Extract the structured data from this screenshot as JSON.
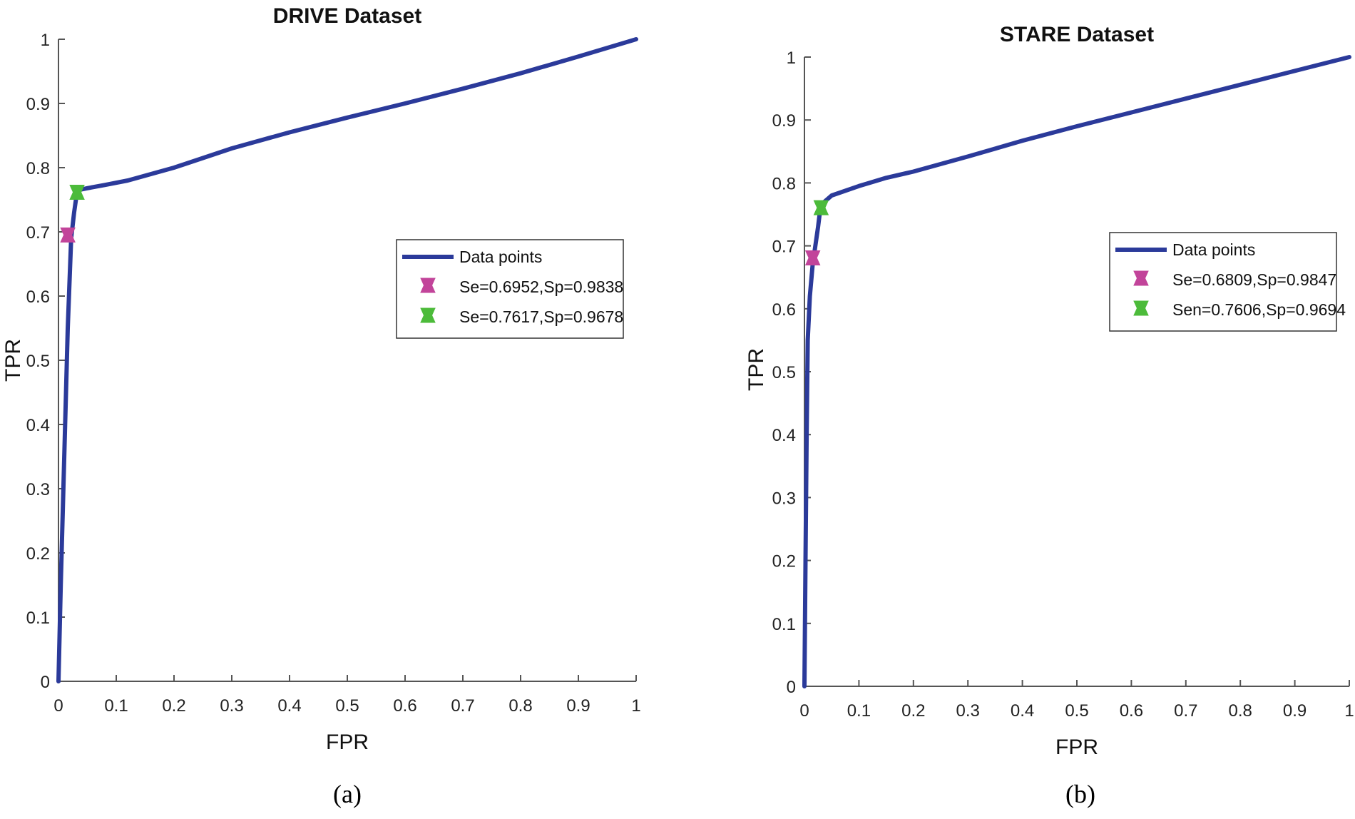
{
  "chart_data": [
    {
      "type": "line",
      "title": "DRIVE Dataset",
      "xlabel": "FPR",
      "ylabel": "TPR",
      "caption": "(a)",
      "xlim": [
        0,
        1
      ],
      "ylim": [
        0,
        1
      ],
      "xticks": [
        "0",
        "0.1",
        "0.2",
        "0.3",
        "0.4",
        "0.5",
        "0.6",
        "0.7",
        "0.8",
        "0.9",
        "1"
      ],
      "yticks": [
        "0",
        "0.1",
        "0.2",
        "0.3",
        "0.4",
        "0.5",
        "0.6",
        "0.7",
        "0.8",
        "0.9",
        "1"
      ],
      "legend_position": "right-middle",
      "series": [
        {
          "name": "Data points",
          "color": "#2b3a9a",
          "x": [
            0,
            0.004,
            0.01,
            0.016,
            0.022,
            0.027,
            0.031,
            0.034,
            0.05,
            0.08,
            0.12,
            0.2,
            0.3,
            0.4,
            0.5,
            0.6,
            0.7,
            0.8,
            0.9,
            1.0
          ],
          "y": [
            0,
            0.15,
            0.35,
            0.55,
            0.69,
            0.73,
            0.755,
            0.765,
            0.768,
            0.773,
            0.78,
            0.8,
            0.83,
            0.855,
            0.878,
            0.9,
            0.923,
            0.947,
            0.973,
            1.0
          ]
        }
      ],
      "markers": [
        {
          "label": "Se=0.6952,Sp=0.9838",
          "color": "#c2449a",
          "x": 0.0162,
          "y": 0.6952
        },
        {
          "label": "Se=0.7617,Sp=0.9678",
          "color": "#4cbb3a",
          "x": 0.0322,
          "y": 0.7617
        }
      ]
    },
    {
      "type": "line",
      "title": "STARE Dataset",
      "xlabel": "FPR",
      "ylabel": "TPR",
      "caption": "(b)",
      "xlim": [
        0,
        1
      ],
      "ylim": [
        0,
        1
      ],
      "xticks": [
        "0",
        "0.1",
        "0.2",
        "0.3",
        "0.4",
        "0.5",
        "0.6",
        "0.7",
        "0.8",
        "0.9",
        "1"
      ],
      "yticks": [
        "0",
        "0.1",
        "0.2",
        "0.3",
        "0.4",
        "0.5",
        "0.6",
        "0.7",
        "0.8",
        "0.9",
        "1"
      ],
      "legend_position": "top-right",
      "series": [
        {
          "name": "Data points",
          "color": "#2b3a9a",
          "x": [
            0,
            0.002,
            0.004,
            0.006,
            0.01,
            0.015,
            0.02,
            0.025,
            0.03,
            0.05,
            0.1,
            0.15,
            0.2,
            0.3,
            0.4,
            0.5,
            0.6,
            0.7,
            0.8,
            0.9,
            1.0
          ],
          "y": [
            0,
            0.2,
            0.4,
            0.55,
            0.62,
            0.67,
            0.7,
            0.73,
            0.765,
            0.78,
            0.795,
            0.808,
            0.818,
            0.842,
            0.867,
            0.89,
            0.912,
            0.934,
            0.956,
            0.978,
            1.0
          ]
        }
      ],
      "markers": [
        {
          "label": "Se=0.6809,Sp=0.9847",
          "color": "#c2449a",
          "x": 0.0153,
          "y": 0.6809
        },
        {
          "label": "Sen=0.7606,Sp=0.9694",
          "color": "#4cbb3a",
          "x": 0.0306,
          "y": 0.7606
        }
      ]
    }
  ]
}
